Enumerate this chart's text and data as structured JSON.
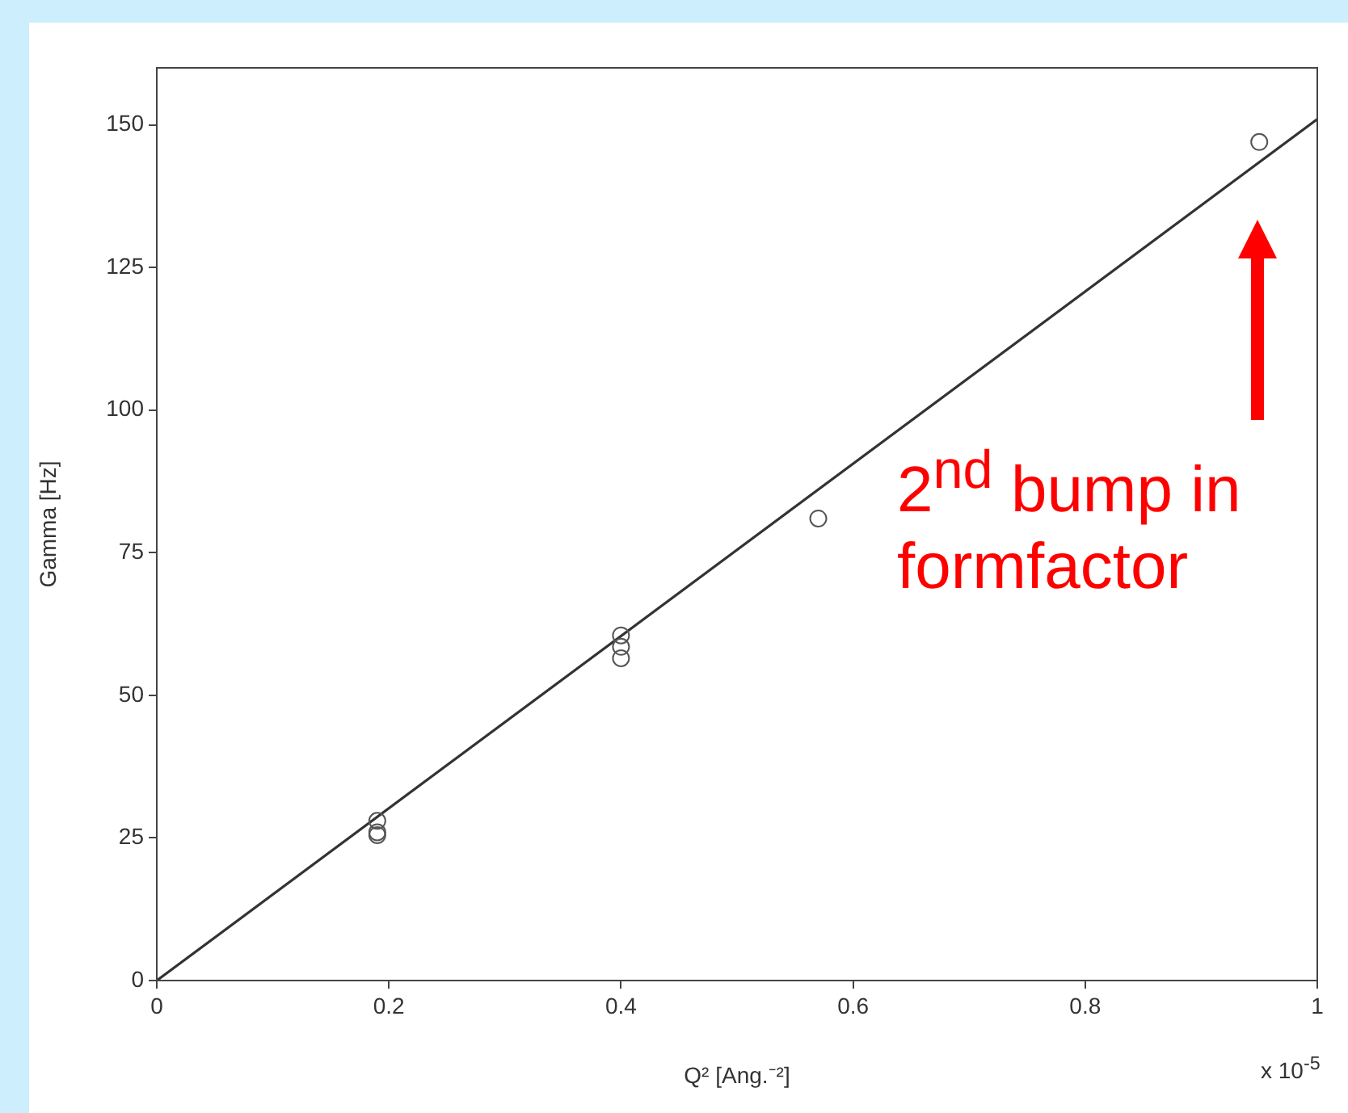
{
  "chart_data": {
    "type": "scatter",
    "xlabel": "Q² [Ang.⁻²]",
    "ylabel": "Gamma [Hz]",
    "annotations": [
      "x 10$^{-5}$",
      "2$^{nd}$ bump in formfactor"
    ],
    "xlim": [
      0,
      1
    ],
    "xticks": [
      0,
      0.2,
      0.4,
      0.6,
      0.8,
      1
    ],
    "ylim": [
      0,
      160
    ],
    "yticks": [
      0,
      25,
      50,
      75,
      100,
      125,
      150
    ],
    "series": [
      {
        "type": "scatter",
        "color": "#555555",
        "marker": "circle",
        "x": [
          0.19,
          0.19,
          0.19,
          0.4,
          0.4,
          0.4,
          0.57,
          0.95
        ],
        "values": [
          28,
          26,
          25.5,
          60.5,
          58.5,
          56.5,
          81,
          147
        ]
      },
      {
        "type": "line",
        "color": "#333333",
        "marker": "none",
        "line_style": "solid",
        "x": [
          0,
          1
        ],
        "values": [
          0,
          151
        ]
      }
    ]
  }
}
